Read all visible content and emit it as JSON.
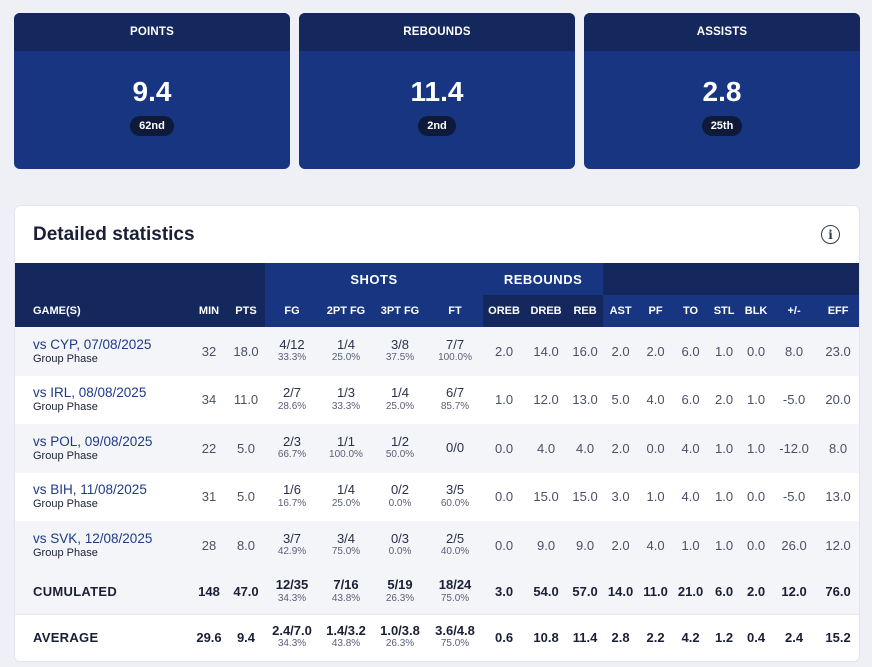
{
  "cards": [
    {
      "label": "POINTS",
      "value": "9.4",
      "rank": "62nd"
    },
    {
      "label": "REBOUNDS",
      "value": "11.4",
      "rank": "2nd"
    },
    {
      "label": "ASSISTS",
      "value": "2.8",
      "rank": "25th"
    }
  ],
  "panel": {
    "title": "Detailed statistics",
    "info_glyph": "i"
  },
  "table": {
    "groups": {
      "shots": "SHOTS",
      "rebounds": "REBOUNDS"
    },
    "columns": {
      "games": "GAME(S)",
      "min": "MIN",
      "pts": "PTS",
      "fg": "FG",
      "fg2": "2PT FG",
      "fg3": "3PT FG",
      "ft": "FT",
      "oreb": "OREB",
      "dreb": "DREB",
      "reb": "REB",
      "ast": "AST",
      "pf": "PF",
      "to": "TO",
      "stl": "STL",
      "blk": "BLK",
      "pm": "+/-",
      "eff": "EFF"
    },
    "rows": [
      {
        "opponent": "vs CYP, 07/08/2025",
        "phase": "Group Phase",
        "min": "32",
        "pts": "18.0",
        "fg": "4/12",
        "fg_pct": "33.3%",
        "fg2": "1/4",
        "fg2_pct": "25.0%",
        "fg3": "3/8",
        "fg3_pct": "37.5%",
        "ft": "7/7",
        "ft_pct": "100.0%",
        "oreb": "2.0",
        "dreb": "14.0",
        "reb": "16.0",
        "ast": "2.0",
        "pf": "2.0",
        "to": "6.0",
        "stl": "1.0",
        "blk": "0.0",
        "pm": "8.0",
        "eff": "23.0"
      },
      {
        "opponent": "vs IRL, 08/08/2025",
        "phase": "Group Phase",
        "min": "34",
        "pts": "11.0",
        "fg": "2/7",
        "fg_pct": "28.6%",
        "fg2": "1/3",
        "fg2_pct": "33.3%",
        "fg3": "1/4",
        "fg3_pct": "25.0%",
        "ft": "6/7",
        "ft_pct": "85.7%",
        "oreb": "1.0",
        "dreb": "12.0",
        "reb": "13.0",
        "ast": "5.0",
        "pf": "4.0",
        "to": "6.0",
        "stl": "2.0",
        "blk": "1.0",
        "pm": "-5.0",
        "eff": "20.0"
      },
      {
        "opponent": "vs POL, 09/08/2025",
        "phase": "Group Phase",
        "min": "22",
        "pts": "5.0",
        "fg": "2/3",
        "fg_pct": "66.7%",
        "fg2": "1/1",
        "fg2_pct": "100.0%",
        "fg3": "1/2",
        "fg3_pct": "50.0%",
        "ft": "0/0",
        "ft_pct": "",
        "oreb": "0.0",
        "dreb": "4.0",
        "reb": "4.0",
        "ast": "2.0",
        "pf": "0.0",
        "to": "4.0",
        "stl": "1.0",
        "blk": "1.0",
        "pm": "-12.0",
        "eff": "8.0"
      },
      {
        "opponent": "vs BIH, 11/08/2025",
        "phase": "Group Phase",
        "min": "31",
        "pts": "5.0",
        "fg": "1/6",
        "fg_pct": "16.7%",
        "fg2": "1/4",
        "fg2_pct": "25.0%",
        "fg3": "0/2",
        "fg3_pct": "0.0%",
        "ft": "3/5",
        "ft_pct": "60.0%",
        "oreb": "0.0",
        "dreb": "15.0",
        "reb": "15.0",
        "ast": "3.0",
        "pf": "1.0",
        "to": "4.0",
        "stl": "1.0",
        "blk": "0.0",
        "pm": "-5.0",
        "eff": "13.0"
      },
      {
        "opponent": "vs SVK, 12/08/2025",
        "phase": "Group Phase",
        "min": "28",
        "pts": "8.0",
        "fg": "3/7",
        "fg_pct": "42.9%",
        "fg2": "3/4",
        "fg2_pct": "75.0%",
        "fg3": "0/3",
        "fg3_pct": "0.0%",
        "ft": "2/5",
        "ft_pct": "40.0%",
        "oreb": "0.0",
        "dreb": "9.0",
        "reb": "9.0",
        "ast": "2.0",
        "pf": "4.0",
        "to": "1.0",
        "stl": "1.0",
        "blk": "0.0",
        "pm": "26.0",
        "eff": "12.0"
      }
    ],
    "cumulated": {
      "label": "CUMULATED",
      "min": "148",
      "pts": "47.0",
      "fg": "12/35",
      "fg_pct": "34.3%",
      "fg2": "7/16",
      "fg2_pct": "43.8%",
      "fg3": "5/19",
      "fg3_pct": "26.3%",
      "ft": "18/24",
      "ft_pct": "75.0%",
      "oreb": "3.0",
      "dreb": "54.0",
      "reb": "57.0",
      "ast": "14.0",
      "pf": "11.0",
      "to": "21.0",
      "stl": "6.0",
      "blk": "2.0",
      "pm": "12.0",
      "eff": "76.0"
    },
    "average": {
      "label": "AVERAGE",
      "min": "29.6",
      "pts": "9.4",
      "fg": "2.4/7.0",
      "fg_pct": "34.3%",
      "fg2": "1.4/3.2",
      "fg2_pct": "43.8%",
      "fg3": "1.0/3.8",
      "fg3_pct": "26.3%",
      "ft": "3.6/4.8",
      "ft_pct": "75.0%",
      "oreb": "0.6",
      "dreb": "10.8",
      "reb": "11.4",
      "ast": "2.8",
      "pf": "2.2",
      "to": "4.2",
      "stl": "1.2",
      "blk": "0.4",
      "pm": "2.4",
      "eff": "15.2"
    }
  }
}
